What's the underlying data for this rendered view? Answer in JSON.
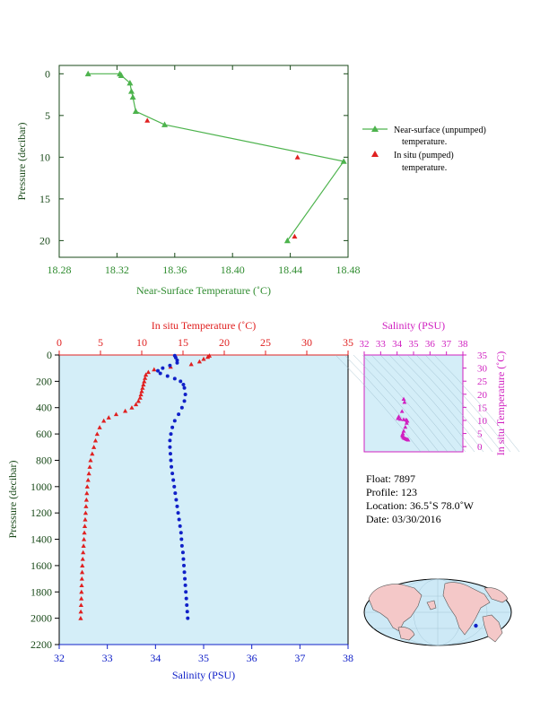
{
  "colors": {
    "near_surface": "#4db34d",
    "in_situ": "#e02020",
    "salinity": "#1020c8",
    "axis_magenta": "#d020c0",
    "axis_green": "#2e8b2e",
    "plot_bg": "#d4eef8",
    "map_ocean": "#cde9f6",
    "map_land": "#f4c8c8"
  },
  "chart_data": [
    {
      "type": "line",
      "xlabel": "Near-Surface Temperature (˚C)",
      "ylabel": "Pressure (decibar)",
      "xlim": [
        18.28,
        18.48
      ],
      "ylim": [
        22,
        -1
      ],
      "x_ticks": [
        "18.28",
        "18.32",
        "18.36",
        "18.40",
        "18.44",
        "18.48"
      ],
      "y_ticks": [
        "0",
        "5",
        "10",
        "15",
        "20"
      ],
      "series": [
        {
          "name": "Near-surface (unpumped) temperature.",
          "points": [
            {
              "x": 18.3,
              "y": 0.0
            },
            {
              "x": 18.322,
              "y": 0.0
            },
            {
              "x": 18.323,
              "y": 0.2
            },
            {
              "x": 18.329,
              "y": 1.1
            },
            {
              "x": 18.33,
              "y": 2.1
            },
            {
              "x": 18.331,
              "y": 2.8
            },
            {
              "x": 18.333,
              "y": 4.5
            },
            {
              "x": 18.353,
              "y": 6.1
            },
            {
              "x": 18.477,
              "y": 10.5
            },
            {
              "x": 18.438,
              "y": 20.0
            }
          ]
        },
        {
          "name": "In situ (pumped) temperature.",
          "points": [
            {
              "x": 18.341,
              "y": 5.6
            },
            {
              "x": 18.445,
              "y": 10.0
            },
            {
              "x": 18.443,
              "y": 19.5
            }
          ]
        }
      ],
      "legend": [
        {
          "line1": "Near-surface (unpumped)",
          "line2": "temperature."
        },
        {
          "line1": "In situ (pumped)",
          "line2": "temperature."
        }
      ]
    },
    {
      "type": "scatter",
      "title_top": "In situ Temperature (˚C)",
      "xlabel": "Salinity (PSU)",
      "ylabel": "Pressure (decibar)",
      "temp_lim": [
        0,
        35
      ],
      "sal_lim": [
        32,
        38
      ],
      "ylim": [
        2200,
        0
      ],
      "temp_ticks": [
        "0",
        "5",
        "10",
        "15",
        "20",
        "25",
        "30",
        "35"
      ],
      "sal_ticks": [
        "32",
        "33",
        "34",
        "35",
        "36",
        "37",
        "38"
      ],
      "y_ticks": [
        "0",
        "200",
        "400",
        "600",
        "800",
        "1000",
        "1200",
        "1400",
        "1600",
        "1800",
        "2000",
        "2200"
      ],
      "temperature": [
        {
          "p": 5,
          "v": 18.2
        },
        {
          "p": 15,
          "v": 18.0
        },
        {
          "p": 30,
          "v": 17.5
        },
        {
          "p": 50,
          "v": 17.0
        },
        {
          "p": 70,
          "v": 16.0
        },
        {
          "p": 90,
          "v": 13.5
        },
        {
          "p": 110,
          "v": 11.5
        },
        {
          "p": 130,
          "v": 10.8
        },
        {
          "p": 150,
          "v": 10.5
        },
        {
          "p": 175,
          "v": 10.4
        },
        {
          "p": 200,
          "v": 10.3
        },
        {
          "p": 225,
          "v": 10.2
        },
        {
          "p": 250,
          "v": 10.1
        },
        {
          "p": 275,
          "v": 10.0
        },
        {
          "p": 300,
          "v": 9.9
        },
        {
          "p": 325,
          "v": 9.8
        },
        {
          "p": 350,
          "v": 9.6
        },
        {
          "p": 375,
          "v": 9.3
        },
        {
          "p": 400,
          "v": 8.8
        },
        {
          "p": 425,
          "v": 8.0
        },
        {
          "p": 450,
          "v": 6.9
        },
        {
          "p": 475,
          "v": 6.0
        },
        {
          "p": 500,
          "v": 5.4
        },
        {
          "p": 550,
          "v": 4.9
        },
        {
          "p": 600,
          "v": 4.6
        },
        {
          "p": 650,
          "v": 4.4
        },
        {
          "p": 700,
          "v": 4.2
        },
        {
          "p": 750,
          "v": 4.0
        },
        {
          "p": 800,
          "v": 3.8
        },
        {
          "p": 850,
          "v": 3.7
        },
        {
          "p": 900,
          "v": 3.6
        },
        {
          "p": 950,
          "v": 3.5
        },
        {
          "p": 1000,
          "v": 3.4
        },
        {
          "p": 1050,
          "v": 3.35
        },
        {
          "p": 1100,
          "v": 3.3
        },
        {
          "p": 1150,
          "v": 3.25
        },
        {
          "p": 1200,
          "v": 3.2
        },
        {
          "p": 1250,
          "v": 3.15
        },
        {
          "p": 1300,
          "v": 3.1
        },
        {
          "p": 1350,
          "v": 3.05
        },
        {
          "p": 1400,
          "v": 3.0
        },
        {
          "p": 1450,
          "v": 2.95
        },
        {
          "p": 1500,
          "v": 2.9
        },
        {
          "p": 1550,
          "v": 2.85
        },
        {
          "p": 1600,
          "v": 2.8
        },
        {
          "p": 1650,
          "v": 2.78
        },
        {
          "p": 1700,
          "v": 2.75
        },
        {
          "p": 1750,
          "v": 2.72
        },
        {
          "p": 1800,
          "v": 2.7
        },
        {
          "p": 1850,
          "v": 2.68
        },
        {
          "p": 1900,
          "v": 2.65
        },
        {
          "p": 1950,
          "v": 2.62
        },
        {
          "p": 2000,
          "v": 2.6
        }
      ],
      "salinity": [
        {
          "p": 5,
          "v": 34.4
        },
        {
          "p": 20,
          "v": 34.42
        },
        {
          "p": 40,
          "v": 34.45
        },
        {
          "p": 60,
          "v": 34.45
        },
        {
          "p": 80,
          "v": 34.3
        },
        {
          "p": 100,
          "v": 34.15
        },
        {
          "p": 120,
          "v": 34.05
        },
        {
          "p": 140,
          "v": 34.1
        },
        {
          "p": 160,
          "v": 34.25
        },
        {
          "p": 180,
          "v": 34.4
        },
        {
          "p": 200,
          "v": 34.52
        },
        {
          "p": 225,
          "v": 34.58
        },
        {
          "p": 250,
          "v": 34.6
        },
        {
          "p": 300,
          "v": 34.62
        },
        {
          "p": 350,
          "v": 34.6
        },
        {
          "p": 400,
          "v": 34.55
        },
        {
          "p": 450,
          "v": 34.48
        },
        {
          "p": 500,
          "v": 34.4
        },
        {
          "p": 550,
          "v": 34.35
        },
        {
          "p": 600,
          "v": 34.32
        },
        {
          "p": 650,
          "v": 34.3
        },
        {
          "p": 700,
          "v": 34.3
        },
        {
          "p": 750,
          "v": 34.31
        },
        {
          "p": 800,
          "v": 34.32
        },
        {
          "p": 850,
          "v": 34.33
        },
        {
          "p": 900,
          "v": 34.35
        },
        {
          "p": 950,
          "v": 34.37
        },
        {
          "p": 1000,
          "v": 34.39
        },
        {
          "p": 1050,
          "v": 34.41
        },
        {
          "p": 1100,
          "v": 34.43
        },
        {
          "p": 1150,
          "v": 34.45
        },
        {
          "p": 1200,
          "v": 34.47
        },
        {
          "p": 1250,
          "v": 34.49
        },
        {
          "p": 1300,
          "v": 34.51
        },
        {
          "p": 1350,
          "v": 34.53
        },
        {
          "p": 1400,
          "v": 34.54
        },
        {
          "p": 1450,
          "v": 34.55
        },
        {
          "p": 1500,
          "v": 34.57
        },
        {
          "p": 1550,
          "v": 34.58
        },
        {
          "p": 1600,
          "v": 34.59
        },
        {
          "p": 1650,
          "v": 34.6
        },
        {
          "p": 1700,
          "v": 34.61
        },
        {
          "p": 1750,
          "v": 34.62
        },
        {
          "p": 1800,
          "v": 34.63
        },
        {
          "p": 1850,
          "v": 34.64
        },
        {
          "p": 1900,
          "v": 34.65
        },
        {
          "p": 1950,
          "v": 34.66
        },
        {
          "p": 2000,
          "v": 34.67
        }
      ]
    },
    {
      "type": "scatter",
      "title": "Salinity (PSU)",
      "ylabel": "In situ Temperature (˚C)",
      "xlim": [
        32,
        38
      ],
      "ylim": [
        -2,
        35
      ],
      "x_ticks": [
        "32",
        "33",
        "34",
        "35",
        "36",
        "37",
        "38"
      ],
      "y_ticks": [
        "0",
        "5",
        "10",
        "15",
        "20",
        "25",
        "30",
        "35"
      ],
      "points": [
        {
          "x": 34.4,
          "y": 18.2
        },
        {
          "x": 34.45,
          "y": 17.0
        },
        {
          "x": 34.3,
          "y": 13.5
        },
        {
          "x": 34.1,
          "y": 11.5
        },
        {
          "x": 34.05,
          "y": 10.8
        },
        {
          "x": 34.2,
          "y": 10.5
        },
        {
          "x": 34.4,
          "y": 10.4
        },
        {
          "x": 34.55,
          "y": 10.3
        },
        {
          "x": 34.6,
          "y": 10.0
        },
        {
          "x": 34.62,
          "y": 9.8
        },
        {
          "x": 34.58,
          "y": 9.0
        },
        {
          "x": 34.5,
          "y": 7.5
        },
        {
          "x": 34.4,
          "y": 6.0
        },
        {
          "x": 34.35,
          "y": 5.0
        },
        {
          "x": 34.32,
          "y": 4.5
        },
        {
          "x": 34.33,
          "y": 4.0
        },
        {
          "x": 34.38,
          "y": 3.6
        },
        {
          "x": 34.43,
          "y": 3.3
        },
        {
          "x": 34.5,
          "y": 3.1
        },
        {
          "x": 34.56,
          "y": 2.9
        },
        {
          "x": 34.62,
          "y": 2.75
        },
        {
          "x": 34.67,
          "y": 2.6
        }
      ]
    }
  ],
  "info": {
    "float": "Float:  7897",
    "profile": "Profile:  123",
    "location": "Location:  36.5˚S  78.0˚W",
    "date": "Date:  03/30/2016"
  },
  "map": {
    "float_marker": {
      "lat": -36.5,
      "lon": -78.0
    }
  }
}
